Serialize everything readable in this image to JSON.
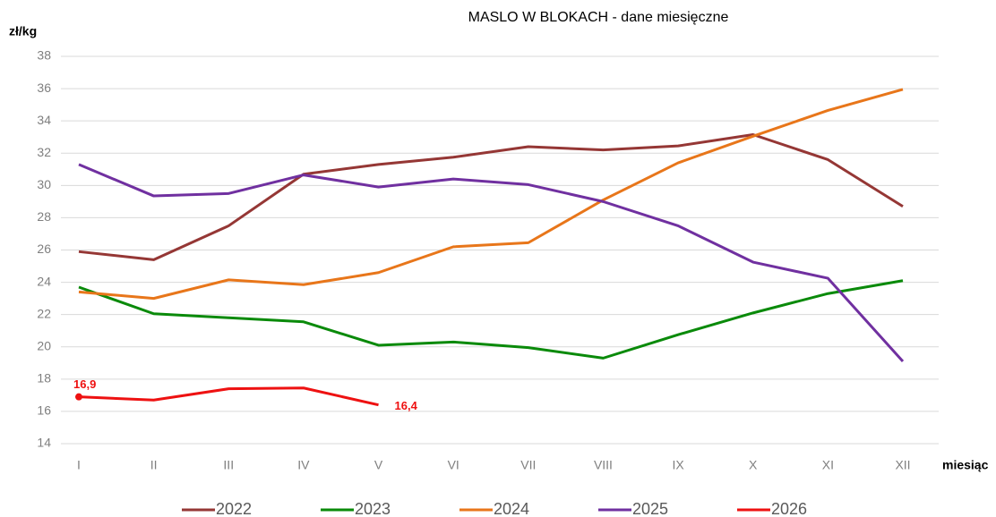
{
  "chart_data": {
    "type": "line",
    "title": "MASLO W BLOKACH - dane miesięczne",
    "y_label": "zł/kg",
    "x_label": "miesiąc",
    "categories": [
      "I",
      "II",
      "III",
      "IV",
      "V",
      "VI",
      "VII",
      "VIII",
      "IX",
      "X",
      "XI",
      "XII"
    ],
    "ylim": [
      14,
      38
    ],
    "yticks": [
      14,
      16,
      18,
      20,
      22,
      24,
      26,
      28,
      30,
      32,
      34,
      36,
      38
    ],
    "grid": true,
    "legend": "bottom",
    "series": [
      {
        "name": "2022",
        "color": "#953735",
        "values": [
          25.9,
          25.4,
          27.5,
          30.7,
          31.3,
          31.75,
          32.4,
          32.2,
          32.45,
          33.15,
          31.6,
          28.7
        ]
      },
      {
        "name": "2023",
        "color": "#0a8a0a",
        "values": [
          23.7,
          22.05,
          21.8,
          21.55,
          20.1,
          20.3,
          19.95,
          19.3,
          20.75,
          22.1,
          23.3,
          24.1
        ]
      },
      {
        "name": "2024",
        "color": "#e8761a",
        "values": [
          23.4,
          23.0,
          24.15,
          23.85,
          24.6,
          26.2,
          26.45,
          29.1,
          31.4,
          33.05,
          34.65,
          35.95
        ]
      },
      {
        "name": "2025",
        "color": "#7030a0",
        "values": [
          31.3,
          29.35,
          29.5,
          30.65,
          29.9,
          30.4,
          30.05,
          29.0,
          27.5,
          25.25,
          24.25,
          19.1
        ]
      },
      {
        "name": "2026",
        "color": "#ee1111",
        "values": [
          16.9,
          16.7,
          17.4,
          17.45,
          16.4,
          null,
          null,
          null,
          null,
          null,
          null,
          null
        ],
        "value_labels": [
          "16,9",
          null,
          null,
          null,
          "16,4",
          null,
          null,
          null,
          null,
          null,
          null,
          null
        ]
      }
    ]
  }
}
